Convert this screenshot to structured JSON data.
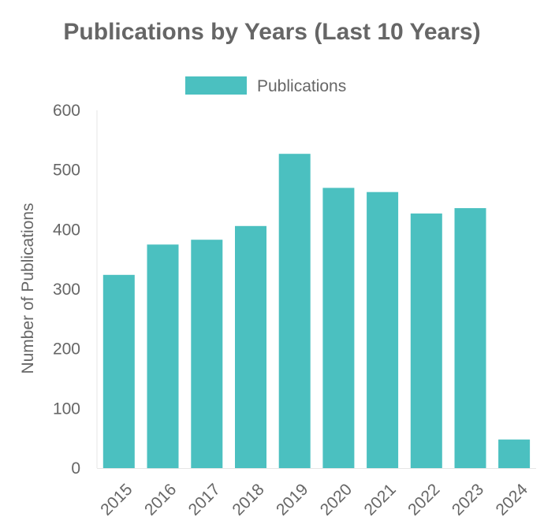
{
  "chart_data": {
    "type": "bar",
    "title": "Publications by Years (Last 10 Years)",
    "xlabel": "",
    "ylabel": "Number of Publications",
    "categories": [
      "2015",
      "2016",
      "2017",
      "2018",
      "2019",
      "2020",
      "2021",
      "2022",
      "2023",
      "2024"
    ],
    "series": [
      {
        "name": "Publications",
        "color": "#4BC0C0",
        "values": [
          324,
          375,
          383,
          406,
          527,
          470,
          463,
          427,
          436,
          48
        ]
      }
    ],
    "ylim": [
      0,
      600
    ],
    "yticks": [
      "0",
      "100",
      "200",
      "300",
      "400",
      "500",
      "600"
    ],
    "legend_position": "top-center",
    "grid": false
  }
}
